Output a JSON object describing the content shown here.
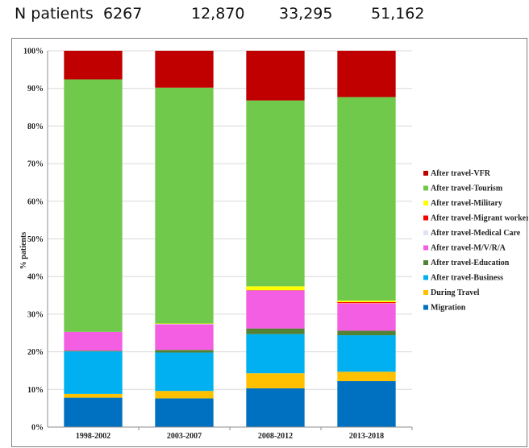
{
  "patients_row": {
    "label": "N patients",
    "counts": [
      "6267",
      "12,870",
      "33,295",
      "51,162"
    ]
  },
  "chart_data": {
    "type": "bar",
    "stacked": true,
    "title": "",
    "xlabel": "",
    "ylabel": "% patients",
    "ylim": [
      0,
      100
    ],
    "yticks": [
      "0%",
      "10%",
      "20%",
      "30%",
      "40%",
      "50%",
      "60%",
      "70%",
      "80%",
      "90%",
      "100%"
    ],
    "categories": [
      "1998-2002",
      "2003-2007",
      "2008-2012",
      "2013-2018"
    ],
    "series": [
      {
        "name": "Migration",
        "color": "#0070c0",
        "values": [
          7.8,
          7.6,
          10.3,
          12.2
        ]
      },
      {
        "name": "During Travel",
        "color": "#ffc000",
        "values": [
          1.0,
          2.0,
          4.0,
          2.5
        ]
      },
      {
        "name": "After travel-Business",
        "color": "#00b0f0",
        "values": [
          11.3,
          10.2,
          10.4,
          9.7
        ]
      },
      {
        "name": "After travel-Education",
        "color": "#548235",
        "values": [
          0.2,
          0.7,
          1.5,
          1.2
        ]
      },
      {
        "name": "After travel-M/V/R/A",
        "color": "#f35ee2",
        "values": [
          5.0,
          6.8,
          10.0,
          7.2
        ]
      },
      {
        "name": "After travel-Medical Care",
        "color": "#dfe3f7",
        "values": [
          0.0,
          0.1,
          0.1,
          0.1
        ]
      },
      {
        "name": "After travel-Migrant worker",
        "color": "#ff0000",
        "values": [
          0.0,
          0.0,
          0.1,
          0.3
        ]
      },
      {
        "name": "After travel-Military",
        "color": "#ffff00",
        "values": [
          0.0,
          0.1,
          1.0,
          0.4
        ]
      },
      {
        "name": "After travel-Tourism",
        "color": "#71c94c",
        "values": [
          67.1,
          62.7,
          49.4,
          54.1
        ]
      },
      {
        "name": "After travel-VFR",
        "color": "#c00000",
        "values": [
          7.6,
          9.8,
          13.2,
          12.3
        ]
      }
    ],
    "legend_position": "right",
    "grid": true
  }
}
